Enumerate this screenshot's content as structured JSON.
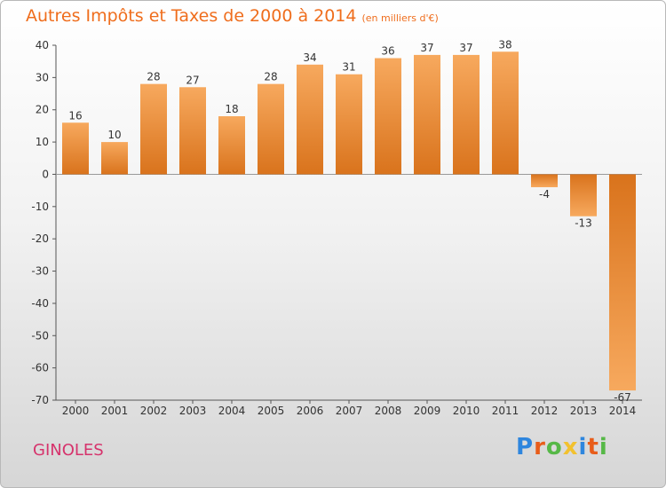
{
  "title": "Autres Impôts et Taxes de 2000 à 2014",
  "subtitle": "(en milliers d'€)",
  "commune": "GINOLES",
  "logo_text": "Proxiti",
  "colors": {
    "title": "#ef6d1c",
    "commune": "#d6336c",
    "bar_light": "#f7a95e",
    "bar_dark": "#d9731c"
  },
  "chart_data": {
    "type": "bar",
    "title": "Autres Impôts et Taxes de 2000 à 2014",
    "subtitle": "(en milliers d'€)",
    "xlabel": "",
    "ylabel": "",
    "categories": [
      "2000",
      "2001",
      "2002",
      "2003",
      "2004",
      "2005",
      "2006",
      "2007",
      "2008",
      "2009",
      "2010",
      "2011",
      "2012",
      "2013",
      "2014"
    ],
    "values": [
      16,
      10,
      28,
      27,
      18,
      28,
      34,
      31,
      36,
      37,
      37,
      38,
      -4,
      -13,
      -67
    ],
    "ylim": [
      -70,
      40
    ],
    "yticks": [
      40,
      30,
      20,
      10,
      0,
      -10,
      -20,
      -30,
      -40,
      -50,
      -60,
      -70
    ],
    "grid": false,
    "legend": "none"
  }
}
